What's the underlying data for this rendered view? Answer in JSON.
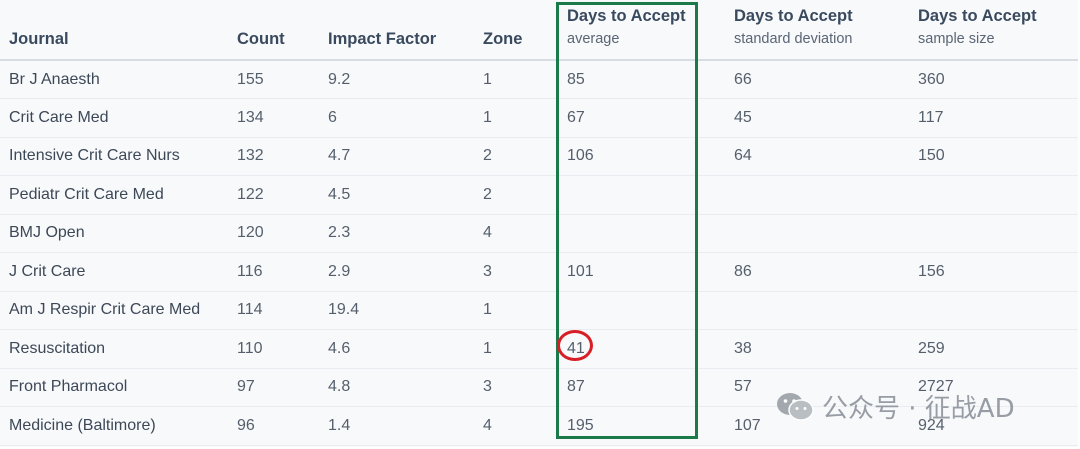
{
  "chart_data": {
    "type": "table",
    "columns": [
      "Journal",
      "Count",
      "Impact Factor",
      "Zone",
      "Days to Accept average",
      "Days to Accept standard deviation",
      "Days to Accept sample size"
    ],
    "headers": {
      "journal": "Journal",
      "count": "Count",
      "impact_factor": "Impact Factor",
      "zone": "Zone",
      "group_title": "Days to Accept",
      "average": "average",
      "std_dev": "standard deviation",
      "sample_size": "sample size"
    },
    "rows": [
      {
        "journal": "Br J Anaesth",
        "count": "155",
        "impact_factor": "9.2",
        "zone": "1",
        "average": "85",
        "std_dev": "66",
        "sample_size": "360"
      },
      {
        "journal": "Crit Care Med",
        "count": "134",
        "impact_factor": "6",
        "zone": "1",
        "average": "67",
        "std_dev": "45",
        "sample_size": "117"
      },
      {
        "journal": "Intensive Crit Care Nurs",
        "count": "132",
        "impact_factor": "4.7",
        "zone": "2",
        "average": "106",
        "std_dev": "64",
        "sample_size": "150"
      },
      {
        "journal": "Pediatr Crit Care Med",
        "count": "122",
        "impact_factor": "4.5",
        "zone": "2",
        "average": "",
        "std_dev": "",
        "sample_size": ""
      },
      {
        "journal": "BMJ Open",
        "count": "120",
        "impact_factor": "2.3",
        "zone": "4",
        "average": "",
        "std_dev": "",
        "sample_size": ""
      },
      {
        "journal": "J Crit Care",
        "count": "116",
        "impact_factor": "2.9",
        "zone": "3",
        "average": "101",
        "std_dev": "86",
        "sample_size": "156"
      },
      {
        "journal": "Am J Respir Crit Care Med",
        "count": "114",
        "impact_factor": "19.4",
        "zone": "1",
        "average": "",
        "std_dev": "",
        "sample_size": ""
      },
      {
        "journal": "Resuscitation",
        "count": "110",
        "impact_factor": "4.6",
        "zone": "1",
        "average": "41",
        "std_dev": "38",
        "sample_size": "259"
      },
      {
        "journal": "Front Pharmacol",
        "count": "97",
        "impact_factor": "4.8",
        "zone": "3",
        "average": "87",
        "std_dev": "57",
        "sample_size": "2727"
      },
      {
        "journal": "Medicine (Baltimore)",
        "count": "96",
        "impact_factor": "1.4",
        "zone": "4",
        "average": "195",
        "std_dev": "107",
        "sample_size": "924"
      }
    ],
    "highlight": {
      "column": "average",
      "box_color": "#1a7a4a",
      "circled_row": 7,
      "circle_color": "#d81f26"
    }
  },
  "watermark": {
    "text": "公众号 · 征战AD",
    "icon": "wechat-icon"
  }
}
